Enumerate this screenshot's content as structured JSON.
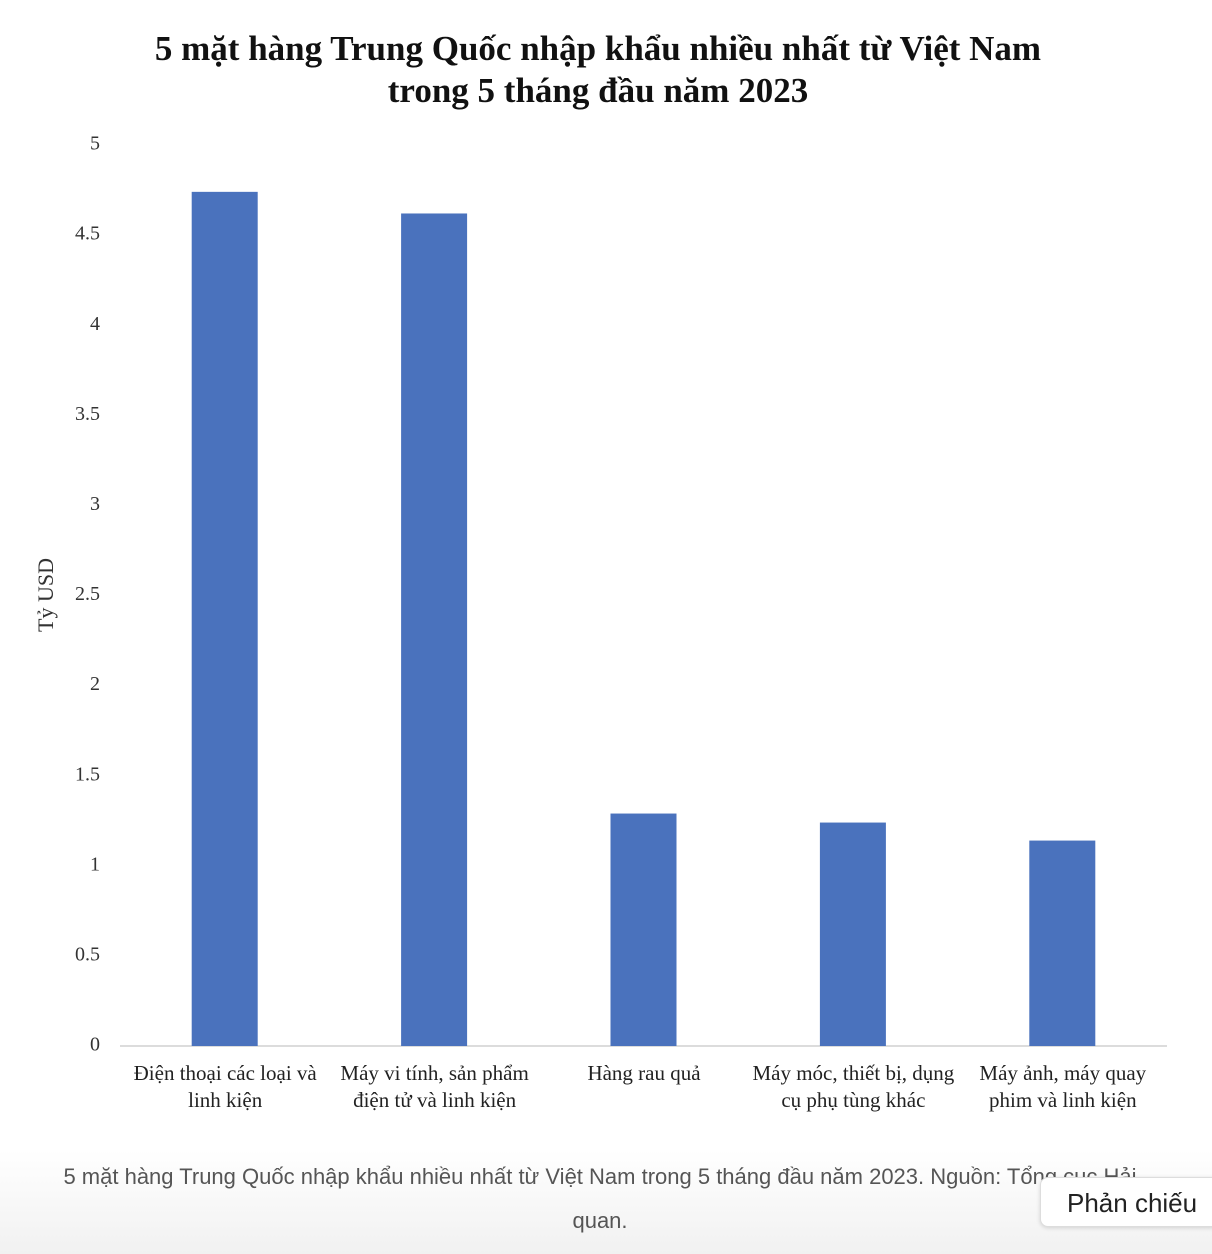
{
  "chart_data": {
    "type": "bar",
    "title": "5 mặt hàng Trung Quốc nhập khẩu nhiều nhất từ Việt Nam trong 5 tháng đầu năm 2023",
    "y_label": "Tỷ USD",
    "categories": [
      "Điện thoại các loại và linh kiện",
      "Máy vi tính, sản phẩm điện tử và linh kiện",
      "Hàng rau quả",
      "Máy móc, thiết bị, dụng cụ phụ tùng khác",
      "Máy ảnh, máy quay phim và linh kiện"
    ],
    "values": [
      4.74,
      4.62,
      1.29,
      1.24,
      1.14
    ],
    "color": "#4a72bd",
    "ylim": [
      0,
      5
    ],
    "yticks": [
      0,
      0.5,
      1,
      1.5,
      2,
      2.5,
      3,
      3.5,
      4,
      4.5,
      5
    ],
    "grid": false
  },
  "caption": "5 mặt hàng Trung Quốc nhập khẩu nhiều nhất từ Việt Nam trong 5 tháng đầu năm 2023. Nguồn: Tổng cục Hải quan.",
  "tooltip": "Phản chiếu"
}
